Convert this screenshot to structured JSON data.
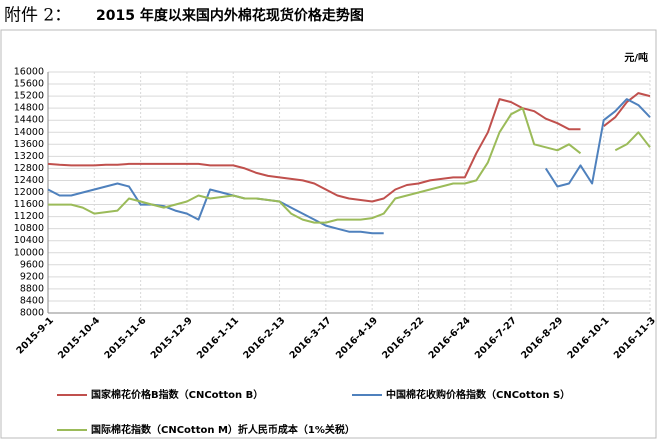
{
  "chart_data": {
    "type": "line",
    "heading_label": "附件 2：",
    "title": "2015 年度以来国内外棉花现货价格走势图",
    "y_unit": "元/吨",
    "categories": [
      "2015-9-1",
      null,
      null,
      null,
      "2015-10-4",
      null,
      null,
      null,
      "2015-11-6",
      null,
      null,
      null,
      "2015-12-9",
      null,
      null,
      null,
      "2016-1-11",
      null,
      null,
      null,
      "2016-2-13",
      null,
      null,
      null,
      "2016-3-17",
      null,
      null,
      null,
      "2016-4-19",
      null,
      null,
      null,
      "2016-5-22",
      null,
      null,
      null,
      "2016-6-24",
      null,
      null,
      null,
      "2016-7-27",
      null,
      null,
      null,
      "2016-8-29",
      null,
      null,
      null,
      "2016-10-1",
      null,
      null,
      null,
      "2016-11-3"
    ],
    "series": [
      {
        "name": "国家棉花价格B指数（CNCotton B）",
        "color": "#c0504d",
        "values": [
          12950,
          12920,
          12900,
          12900,
          12900,
          12920,
          12920,
          12950,
          12950,
          12950,
          12950,
          12950,
          12950,
          12950,
          12900,
          12900,
          12900,
          12800,
          12650,
          12550,
          12500,
          12450,
          12400,
          12300,
          12100,
          11900,
          11800,
          11750,
          11700,
          11800,
          12100,
          12250,
          12300,
          12400,
          12450,
          12500,
          12500,
          13300,
          14000,
          15100,
          15000,
          14800,
          14700,
          14450,
          14300,
          14100,
          14100,
          null,
          14200,
          14500,
          15000,
          15300,
          15200
        ]
      },
      {
        "name": "中国棉花收购价格指数（CNCotton S）",
        "color": "#4f81bd",
        "values": [
          12100,
          11900,
          11900,
          12000,
          12100,
          12200,
          12300,
          12200,
          11600,
          11600,
          11550,
          11400,
          11300,
          11100,
          12100,
          12000,
          11900,
          11800,
          11800,
          11750,
          11700,
          11500,
          11300,
          11100,
          10900,
          10800,
          10700,
          10700,
          10650,
          10650,
          null,
          null,
          null,
          null,
          null,
          null,
          null,
          null,
          null,
          null,
          null,
          null,
          null,
          12800,
          12200,
          12300,
          12900,
          12300,
          14400,
          14700,
          15100,
          14900,
          14500
        ]
      },
      {
        "name": "国际棉花指数（CNCotton M）折人民币成本（1%关税）",
        "color": "#9bbb59",
        "values": [
          11600,
          11600,
          11600,
          11500,
          11300,
          11350,
          11400,
          11800,
          11700,
          11600,
          11500,
          11600,
          11700,
          11900,
          11800,
          11850,
          11900,
          11800,
          11800,
          11750,
          11700,
          11300,
          11100,
          11000,
          11000,
          11100,
          11100,
          11100,
          11150,
          11300,
          11800,
          11900,
          12000,
          12100,
          12200,
          12300,
          12300,
          12400,
          13000,
          14000,
          14600,
          14800,
          13600,
          13500,
          13400,
          13600,
          13300,
          null,
          null,
          13400,
          13600,
          14000,
          13500
        ]
      }
    ],
    "ylim": [
      8000,
      16000
    ],
    "yticks": [
      8000,
      8400,
      8800,
      9200,
      9600,
      10000,
      10400,
      10800,
      11200,
      11600,
      12000,
      12400,
      12800,
      13200,
      13600,
      14000,
      14400,
      14800,
      15200,
      15600,
      16000
    ],
    "grid": true
  }
}
